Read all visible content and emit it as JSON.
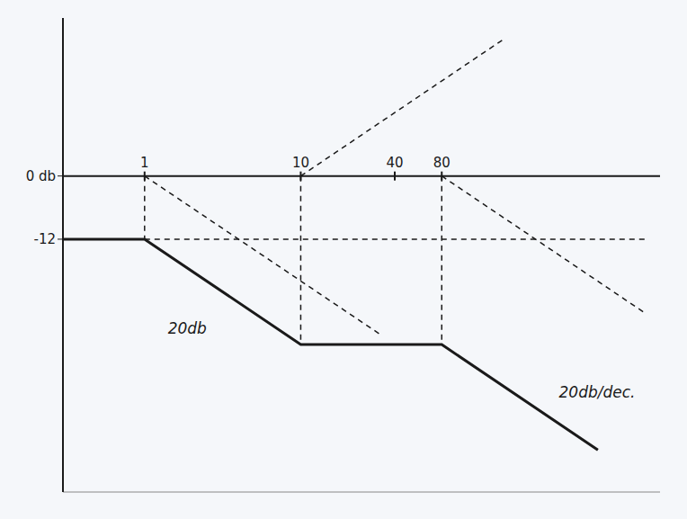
{
  "chart_data": {
    "type": "line",
    "log": "x",
    "xlim": [
      0.3,
      2000
    ],
    "xticks": [
      1,
      10,
      40,
      80
    ],
    "ylim": [
      -60,
      30
    ],
    "yticks": [
      {
        "value": 0,
        "label": "0 db"
      },
      -12
    ],
    "series": [
      {
        "color": "#1a1a1a",
        "line_style": "solid",
        "x": [
          0.3,
          1,
          10,
          80,
          800
        ],
        "values": [
          -12,
          -12,
          -32,
          -32,
          -52
        ]
      },
      {
        "color": "#1a1a1a",
        "line_style": "dashed",
        "x": [
          1,
          1600
        ],
        "values": [
          -12,
          -12
        ]
      },
      {
        "color": "#1a1a1a",
        "line_style": "dashed",
        "x": [
          1,
          32
        ],
        "values": [
          0,
          -30
        ]
      },
      {
        "color": "#1a1a1a",
        "line_style": "dashed",
        "x": [
          10,
          200
        ],
        "values": [
          0,
          26
        ]
      },
      {
        "color": "#1a1a1a",
        "line_style": "dashed",
        "x": [
          80,
          1600
        ],
        "values": [
          0,
          -26
        ]
      },
      {
        "color": "#1a1a1a",
        "line_style": "dashed",
        "x": [
          1,
          1
        ],
        "values": [
          0,
          -12
        ]
      },
      {
        "color": "#1a1a1a",
        "line_style": "dashed",
        "x": [
          10,
          10
        ],
        "values": [
          0,
          -32
        ]
      },
      {
        "color": "#1a1a1a",
        "line_style": "dashed",
        "x": [
          80,
          80
        ],
        "values": [
          0,
          -32
        ]
      }
    ],
    "annotations": [
      {
        "text": "20db",
        "x": 2.5,
        "y": -30
      },
      {
        "text": "20db/dec.",
        "x": 450,
        "y": -42
      }
    ]
  }
}
